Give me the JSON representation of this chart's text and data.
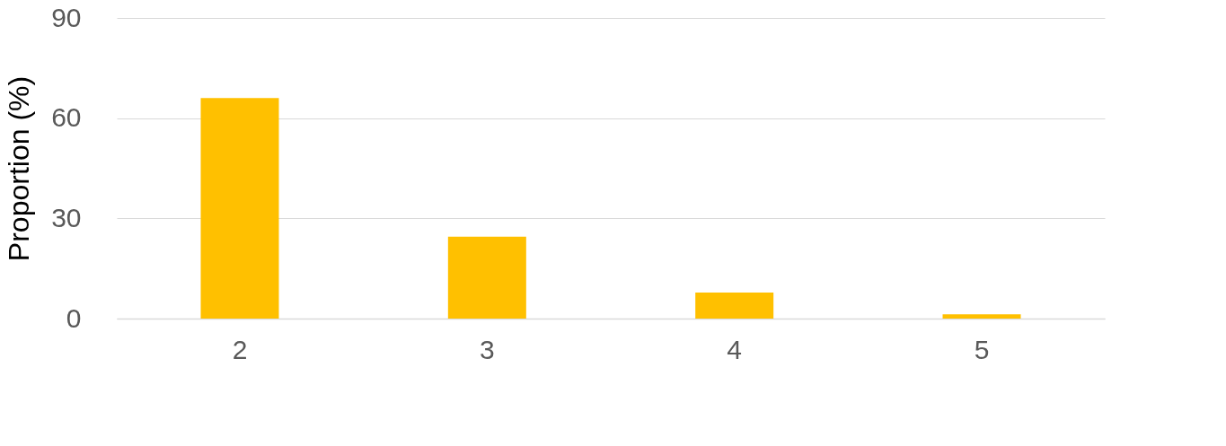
{
  "chart_data": {
    "type": "bar",
    "ylabel": "Proportion (%)",
    "categories": [
      "2",
      "3",
      "4",
      "5"
    ],
    "values": [
      66,
      24.5,
      7.8,
      1.3
    ],
    "color": "#ffc000",
    "ylim": [
      0,
      90
    ],
    "yticks": [
      0,
      30,
      60,
      90
    ],
    "grid": "y"
  }
}
